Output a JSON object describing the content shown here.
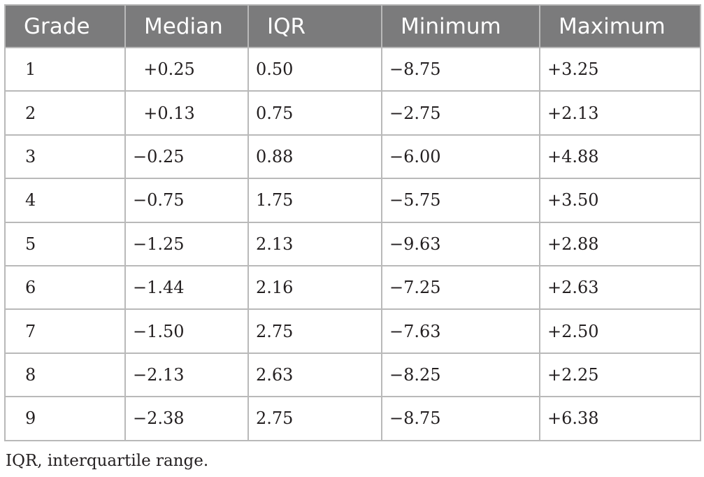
{
  "table": {
    "headers": [
      "Grade",
      "Median",
      "IQR",
      "Minimum",
      "Maximum"
    ],
    "rows": [
      [
        "1",
        "  +0.25",
        "0.50",
        "−8.75",
        "+3.25"
      ],
      [
        "2",
        "  +0.13",
        "0.75",
        "−2.75",
        "+2.13"
      ],
      [
        "3",
        "−0.25",
        "0.88",
        "−6.00",
        "+4.88"
      ],
      [
        "4",
        "−0.75",
        "1.75",
        "−5.75",
        "+3.50"
      ],
      [
        "5",
        "−1.25",
        "2.13",
        "−9.63",
        "+2.88"
      ],
      [
        "6",
        "−1.44",
        "2.16",
        "−7.25",
        "+2.63"
      ],
      [
        "7",
        "−1.50",
        "2.75",
        "−7.63",
        "+2.50"
      ],
      [
        "8",
        "−2.13",
        "2.63",
        "−8.25",
        "+2.25"
      ],
      [
        "9",
        "−2.38",
        "2.75",
        "−8.75",
        "+6.38"
      ]
    ]
  },
  "footnote": "IQR, interquartile range.",
  "colors": {
    "header_background": "#7b7b7c",
    "header_text": "#ffffff",
    "border": "#b9b9b9",
    "body_text": "#231f20"
  }
}
